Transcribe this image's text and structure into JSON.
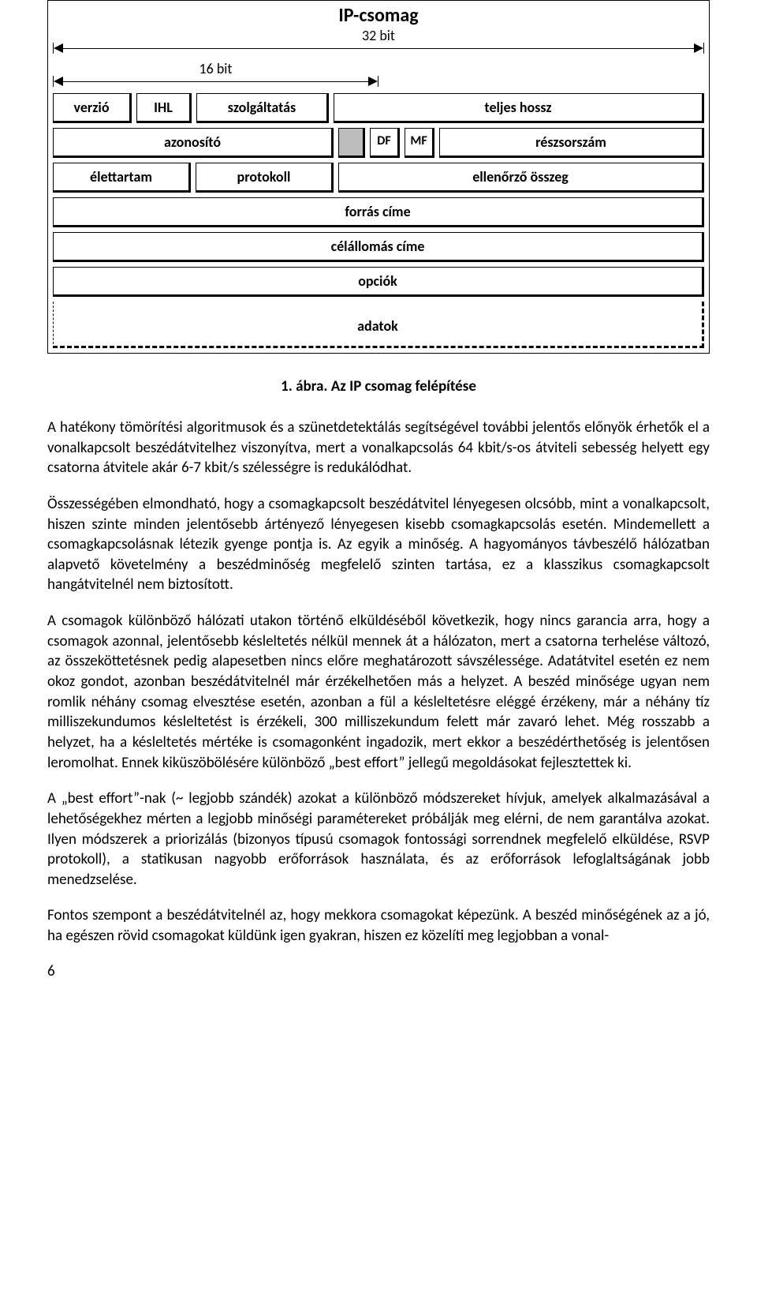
{
  "diagram": {
    "title": "IP-csomag",
    "width_full_label": "32 bit",
    "width_half_label": "16 bit",
    "row1": {
      "verzio": "verzió",
      "ihl": "IHL",
      "szolgaltatas": "szolgáltatás",
      "teljes_hossz": "teljes hossz"
    },
    "row2": {
      "azonosito": "azonosító",
      "df": "DF",
      "mf": "MF",
      "reszsorszam": "részsorszám"
    },
    "row3": {
      "elettartam": "élettartam",
      "protokoll": "protokoll",
      "ellenorzo": "ellenőrző összeg"
    },
    "row4": {
      "forras": "forrás címe"
    },
    "row5": {
      "cel": "célállomás címe"
    },
    "row6": {
      "opciok": "opciók"
    },
    "row7": {
      "adatok": "adatok"
    }
  },
  "caption": "1. ábra.     Az IP csomag felépítése",
  "p1": "A hatékony tömörítési algoritmusok és a szünetdetektálás segítségével további jelentős előnyök érhetők el a vonalkapcsolt beszédátvitelhez viszonyítva, mert a vonalkapcsolás 64 kbit/s-os átviteli sebesség helyett egy csatorna átvitele akár 6-7 kbit/s szélességre is redukálódhat.",
  "p2": "Összességében elmondható, hogy a csomagkapcsolt beszédátvitel lényegesen olcsóbb, mint a vonalkapcsolt, hiszen szinte minden jelentősebb ártényező lényegesen kisebb csomagkapcsolás esetén. Mindemellett a csomagkapcsolásnak létezik gyenge pontja is. Az egyik a minőség. A hagyományos távbeszélő hálózatban alapvető követelmény a beszédminőség megfelelő szinten tartása, ez a klasszikus csomagkapcsolt hangátvitelnél nem biztosított.",
  "p3": "A csomagok különböző hálózati utakon történő elküldéséből következik, hogy nincs garancia arra, hogy a csomagok azonnal, jelentősebb késleltetés nélkül mennek át a hálózaton, mert a csatorna terhelése változó, az összeköttetésnek pedig alapesetben nincs előre meghatározott sávszélessége. Adatátvitel esetén ez nem okoz gondot, azonban beszédátvitelnél már érzékelhetően más a helyzet. A beszéd minősége ugyan nem romlik néhány csomag elvesztése esetén, azonban a fül a késleltetésre eléggé érzékeny, már a néhány tíz milliszekundumos késleltetést is érzékeli, 300 milliszekundum felett már zavaró lehet. Még rosszabb a helyzet, ha a késleltetés mértéke is csomagonként ingadozik, mert ekkor a beszédérthetőség is jelentősen leromolhat. Ennek kiküszöbölésére különböző „best effort” jellegű megoldásokat fejlesztettek ki.",
  "p4": " A „best effort”-nak (~ legjobb szándék) azokat a különböző módszereket hívjuk, amelyek alkalmazásával a lehetőségekhez mérten a legjobb minőségi paramétereket próbálják meg elérni, de nem garantálva azokat. Ilyen módszerek a priorizálás (bizonyos típusú csomagok fontossági sorrendnek megfelelő elküldése, RSVP protokoll), a statikusan nagyobb erőforrások használata, és az erőforrások lefoglaltságának jobb menedzselése.",
  "p5": "Fontos szempont a beszédátvitelnél az, hogy mekkora csomagokat képezünk. A beszéd minőségének az a jó, ha egészen rövid csomagokat küldünk igen gyakran, hiszen ez közelíti meg legjobban a vonal-",
  "pagenum": "6",
  "colors": {
    "text": "#000000",
    "bg": "#ffffff",
    "flag_fill": "#bdbdbd"
  }
}
